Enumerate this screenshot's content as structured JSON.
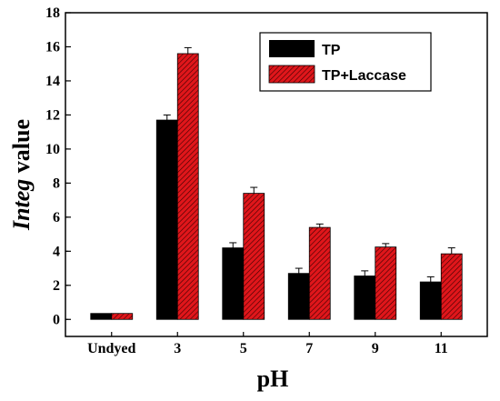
{
  "chart_data": {
    "type": "bar",
    "categories": [
      "Undyed",
      "3",
      "5",
      "7",
      "9",
      "11"
    ],
    "series": [
      {
        "name": "TP",
        "values": [
          0.35,
          11.7,
          4.2,
          2.7,
          2.55,
          2.2
        ],
        "errors": [
          0,
          0.3,
          0.3,
          0.3,
          0.3,
          0.3
        ],
        "color": "#000000"
      },
      {
        "name": "TP+Laccase",
        "values": [
          0.35,
          15.6,
          7.4,
          5.4,
          4.25,
          3.85
        ],
        "errors": [
          0,
          0.35,
          0.35,
          0.2,
          0.2,
          0.35
        ],
        "color": "#e0161b"
      }
    ],
    "xlabel": "pH",
    "ylabel_italic": "Integ",
    "ylabel_rest": " value",
    "ylim": [
      -1,
      18
    ],
    "yticks": [
      0,
      2,
      4,
      6,
      8,
      10,
      12,
      14,
      16,
      18
    ],
    "grid": false,
    "legend_position": "top-right"
  }
}
